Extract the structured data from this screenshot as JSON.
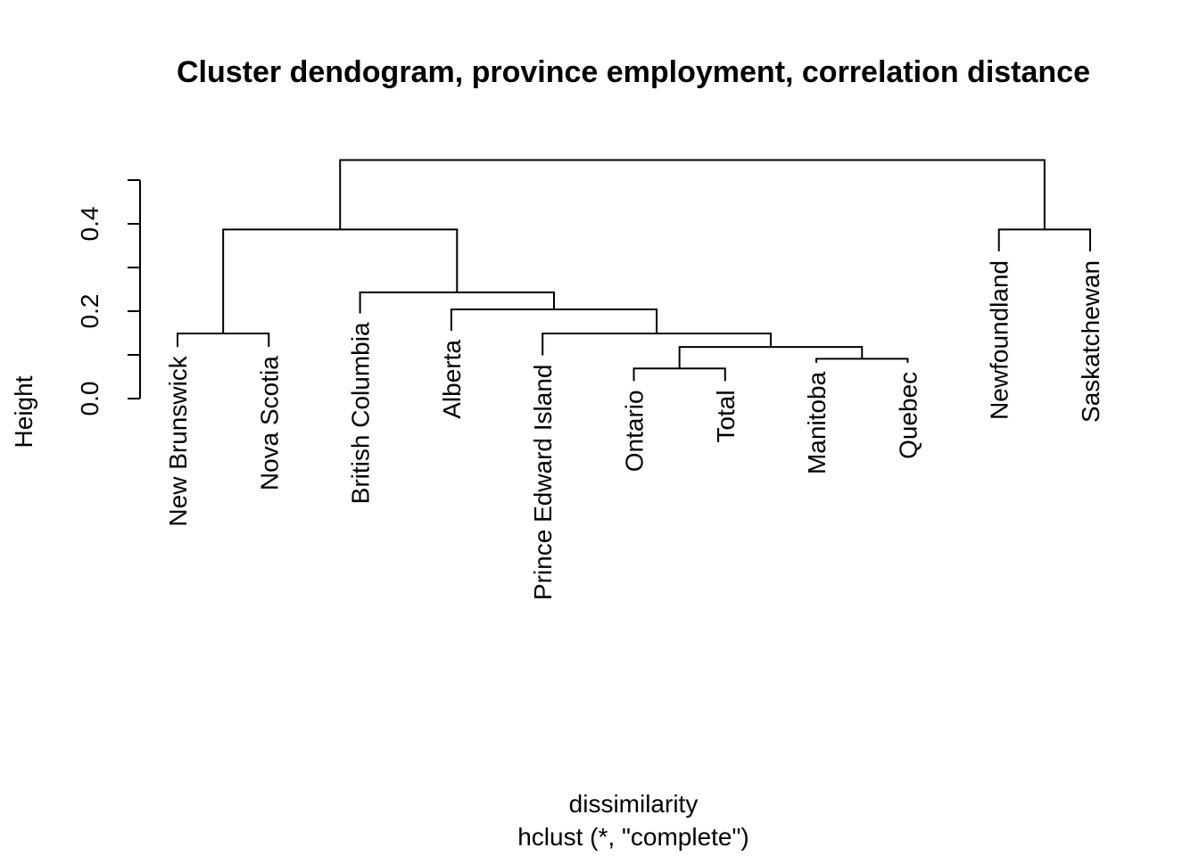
{
  "chart_data": {
    "type": "dendrogram",
    "title": "Cluster dendogram, province employment, correlation distance",
    "ylabel": "Height",
    "xlabel": "dissimilarity",
    "sub": "hclust (*, \"complete\")",
    "ylim": [
      0,
      0.56
    ],
    "yticks": [
      0.0,
      0.1,
      0.2,
      0.3,
      0.4,
      0.5
    ],
    "yticklabels": [
      {
        "value": 0.0,
        "label": "0.0"
      },
      {
        "value": 0.2,
        "label": "0.2"
      },
      {
        "value": 0.4,
        "label": "0.4"
      }
    ],
    "leaves": [
      {
        "label": "New Brunswick",
        "height": 0.118
      },
      {
        "label": "Nova Scotia",
        "height": 0.118
      },
      {
        "label": "British Columbia",
        "height": 0.195
      },
      {
        "label": "Alberta",
        "height": 0.155
      },
      {
        "label": "Prince Edward Island",
        "height": 0.099
      },
      {
        "label": "Ontario",
        "height": 0.04
      },
      {
        "label": "Total",
        "height": 0.04
      },
      {
        "label": "Manitoba",
        "height": 0.082
      },
      {
        "label": "Quebec",
        "height": 0.082
      },
      {
        "label": "Newfoundland",
        "height": 0.337
      },
      {
        "label": "Saskatchewan",
        "height": 0.337
      }
    ],
    "merges": [
      {
        "left": -6,
        "right": -7,
        "height": 0.069
      },
      {
        "left": -8,
        "right": -9,
        "height": 0.091
      },
      {
        "left": 1,
        "right": 2,
        "height": 0.118
      },
      {
        "left": -1,
        "right": -2,
        "height": 0.149
      },
      {
        "left": -5,
        "right": 3,
        "height": 0.149
      },
      {
        "left": -4,
        "right": 5,
        "height": 0.204
      },
      {
        "left": -3,
        "right": 6,
        "height": 0.243
      },
      {
        "left": -10,
        "right": -11,
        "height": 0.387
      },
      {
        "left": 4,
        "right": 7,
        "height": 0.387
      },
      {
        "left": 9,
        "right": 8,
        "height": 0.546
      }
    ]
  }
}
